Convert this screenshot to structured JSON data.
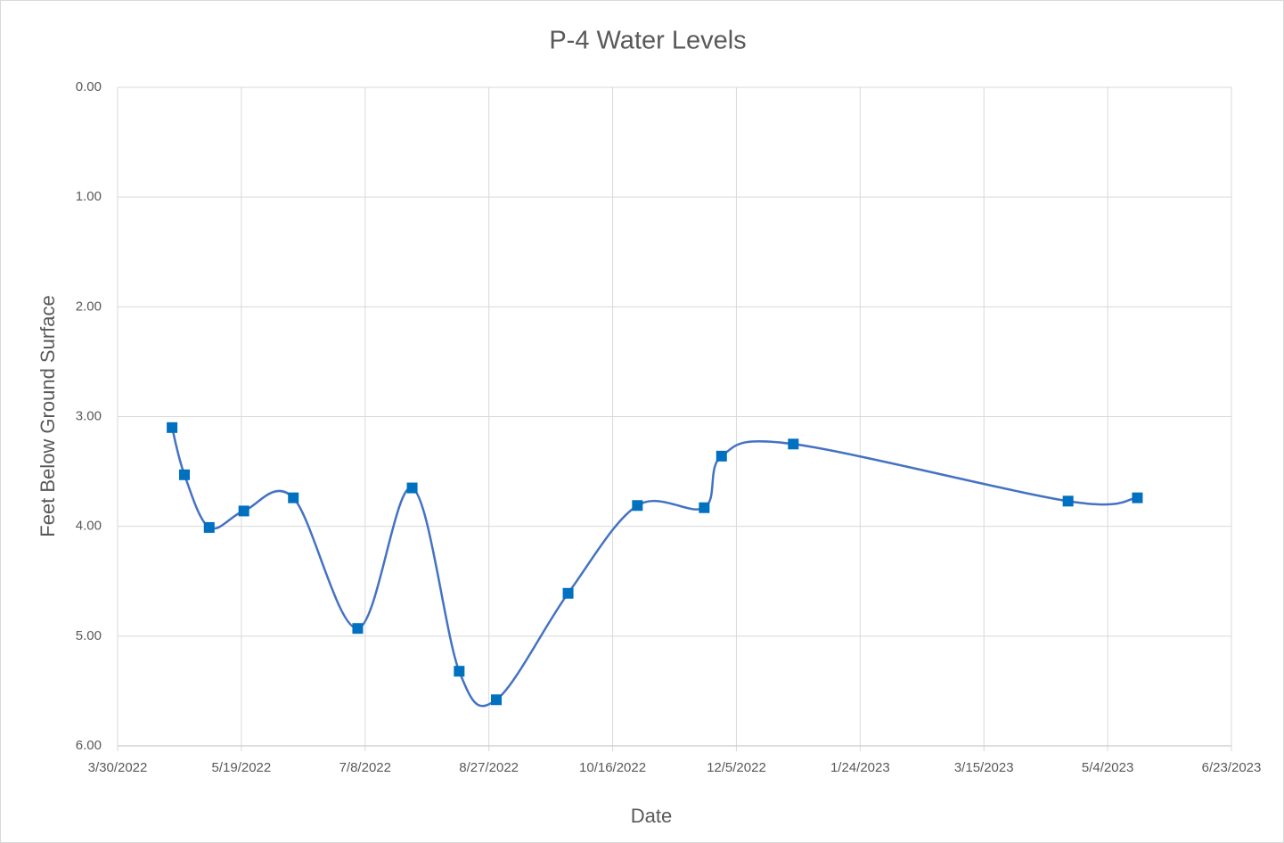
{
  "chart_data": {
    "type": "line",
    "title": "P-4 Water Levels",
    "x_label": "Date",
    "y_label": "Feet Below Ground Surface",
    "x": [
      "4/21/2022",
      "4/26/2022",
      "5/6/2022",
      "5/20/2022",
      "6/9/2022",
      "7/5/2022",
      "7/27/2022",
      "8/15/2022",
      "8/30/2022",
      "9/28/2022",
      "10/26/2022",
      "11/22/2022",
      "11/29/2022",
      "12/28/2022",
      "4/18/2023",
      "5/16/2023"
    ],
    "series": [
      {
        "name": "P-4",
        "color": "#4472c4",
        "marker_color": "#0070c0",
        "values": [
          3.1,
          3.53,
          4.01,
          3.86,
          3.74,
          4.93,
          3.65,
          5.32,
          5.58,
          4.61,
          3.81,
          3.83,
          3.36,
          3.25,
          3.77,
          3.74
        ]
      }
    ],
    "xlim": [
      "3/30/2022",
      "6/23/2023"
    ],
    "xticks": [
      "3/30/2022",
      "5/19/2022",
      "7/8/2022",
      "8/27/2022",
      "10/16/2022",
      "12/5/2022",
      "1/24/2023",
      "3/15/2023",
      "5/4/2023",
      "6/23/2023"
    ],
    "ylim": [
      0,
      6
    ],
    "yticks": [
      {
        "value": 0,
        "label": "0.00"
      },
      {
        "value": 1,
        "label": "1.00"
      },
      {
        "value": 2,
        "label": "2.00"
      },
      {
        "value": 3,
        "label": "3.00"
      },
      {
        "value": 4,
        "label": "4.00"
      },
      {
        "value": 5,
        "label": "5.00"
      },
      {
        "value": 6,
        "label": "6.00"
      }
    ],
    "y_inverted": true,
    "grid": true,
    "smooth": true
  }
}
